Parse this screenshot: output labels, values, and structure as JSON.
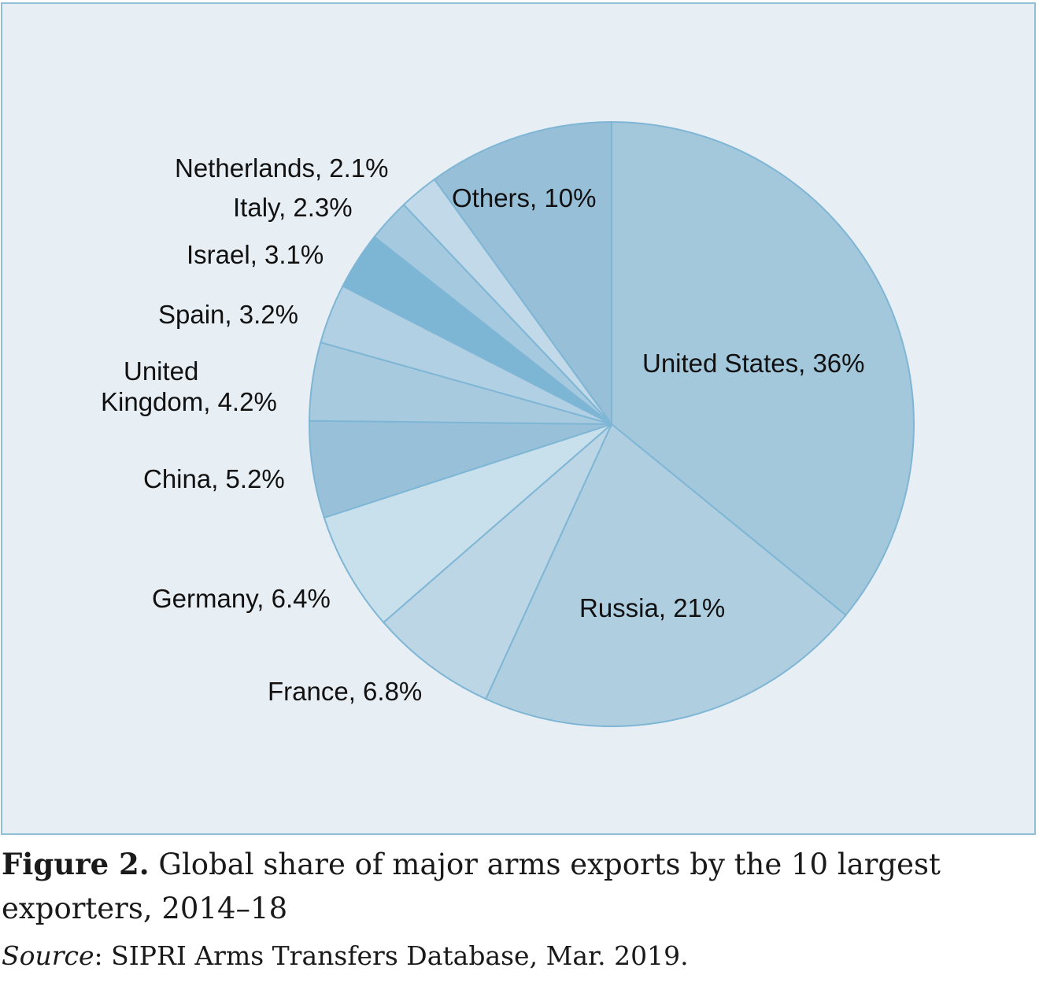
{
  "chart_data": {
    "type": "pie",
    "title": "",
    "slices": [
      {
        "name": "United States",
        "label": "United States, 36%",
        "value": 36,
        "color": "#a3c7db"
      },
      {
        "name": "Russia",
        "label": "Russia, 21%",
        "value": 21,
        "color": "#afcfe1"
      },
      {
        "name": "France",
        "label": "France, 6.8%",
        "value": 6.8,
        "color": "#bcd6e6"
      },
      {
        "name": "Germany",
        "label": "Germany, 6.4%",
        "value": 6.4,
        "color": "#c8dfec"
      },
      {
        "name": "China",
        "label": "China, 5.2%",
        "value": 5.2,
        "color": "#98c1d9"
      },
      {
        "name": "United Kingdom",
        "label": "United Kingdom, 4.2%",
        "label_lines": [
          "United",
          "Kingdom, 4.2%"
        ],
        "value": 4.2,
        "color": "#a7cadf"
      },
      {
        "name": "Spain",
        "label": "Spain, 3.2%",
        "value": 3.2,
        "color": "#b1d0e3"
      },
      {
        "name": "Israel",
        "label": "Israel, 3.1%",
        "value": 3.1,
        "color": "#7db5d4"
      },
      {
        "name": "Italy",
        "label": "Italy, 2.3%",
        "value": 2.3,
        "color": "#a5c9de"
      },
      {
        "name": "Netherlands",
        "label": "Netherlands, 2.1%",
        "value": 2.1,
        "color": "#c1d9e8"
      },
      {
        "name": "Others",
        "label": "Others, 10%",
        "value": 10,
        "color": "#97bfd8"
      }
    ],
    "start_angle": "12 o'clock",
    "direction": "clockwise",
    "stroke_color": "#7fb6d5"
  },
  "caption": {
    "figure_label": "Figure 2.",
    "text": " Global share of major arms exports by the 10 largest exporters, 2014–18"
  },
  "source": {
    "label": "Source",
    "text": ": SIPRI Arms Transfers Database, Mar. 2019."
  }
}
